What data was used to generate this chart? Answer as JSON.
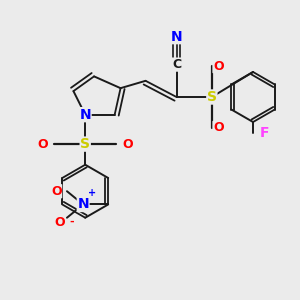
{
  "bg_color": "#ebebeb",
  "figsize": [
    3.0,
    3.0
  ],
  "dpi": 100,
  "bond_color": "#1a1a1a",
  "N_color": "#0000ff",
  "S_color": "#cccc00",
  "O_color": "#ff0000",
  "F_color": "#ff44ff",
  "C_color": "#1a1a1a",
  "font_size": 9,
  "xlim": [
    0,
    10
  ],
  "ylim": [
    0,
    10
  ]
}
